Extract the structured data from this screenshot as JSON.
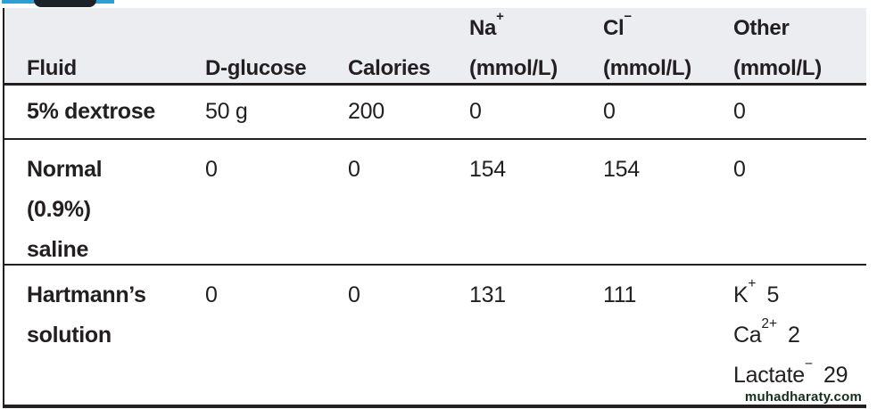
{
  "page": {
    "watermark": "muhadharaty.com",
    "accent_blue": "#2e9fd4",
    "tab_dark": "#1d222a",
    "header_bg": "#ecedf1",
    "ink": "#231f20"
  },
  "table": {
    "header": {
      "fluid": "Fluid",
      "d_glucose": "D-glucose",
      "calories": "Calories",
      "na": {
        "base": "Na",
        "sup": "+",
        "unit": "(mmol/L)"
      },
      "cl": {
        "base": "Cl",
        "sup": "−",
        "unit": "(mmol/L)"
      },
      "other": {
        "base": "Other",
        "unit": "(mmol/L)"
      }
    },
    "rows": [
      {
        "fluid_lines": [
          "5% dextrose"
        ],
        "d_glucose": "50 g",
        "calories": "200",
        "na": "0",
        "cl": "0",
        "other_lines": [
          {
            "base": "0",
            "sup": "",
            "value": ""
          }
        ]
      },
      {
        "fluid_lines": [
          "Normal",
          "(0.9%)",
          "saline"
        ],
        "d_glucose": "0",
        "calories": "0",
        "na": "154",
        "cl": "154",
        "other_lines": [
          {
            "base": "0",
            "sup": "",
            "value": ""
          }
        ]
      },
      {
        "fluid_lines": [
          "Hartmann’s",
          "solution"
        ],
        "d_glucose": "0",
        "calories": "0",
        "na": "131",
        "cl": "111",
        "other_lines": [
          {
            "base": "K",
            "sup": "+",
            "value": "5"
          },
          {
            "base": "Ca",
            "sup": "2+",
            "value": "2"
          },
          {
            "base": "Lactate",
            "sup": "−",
            "value": "29"
          }
        ]
      }
    ]
  }
}
